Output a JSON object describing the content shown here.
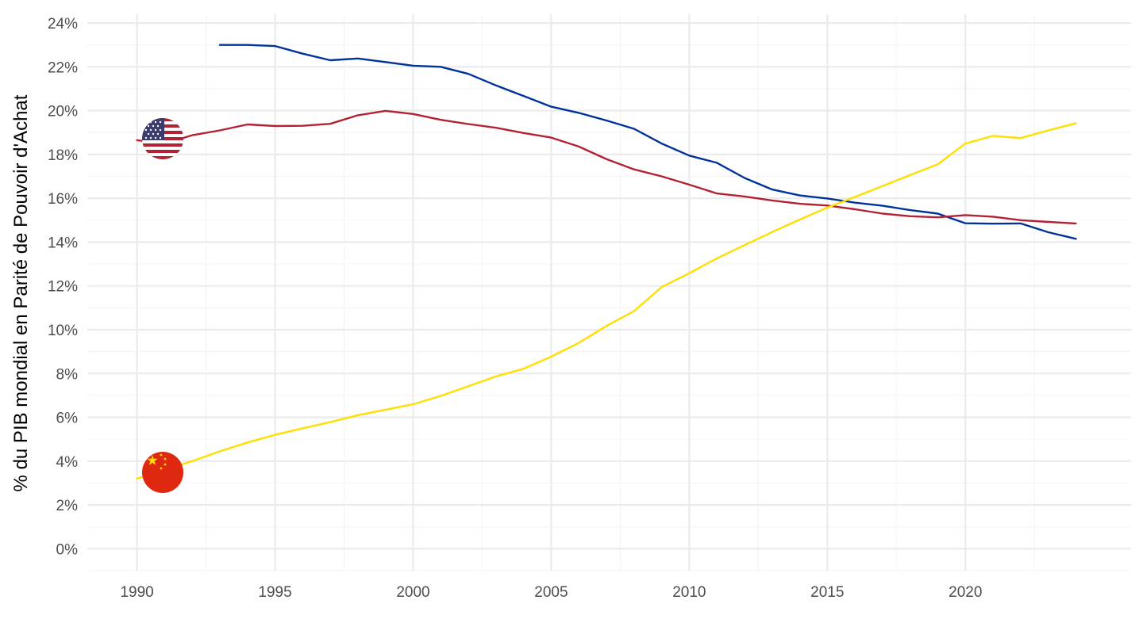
{
  "chart_data": {
    "type": "line",
    "ylabel": "% du PIB mondial en Parité de Pouvoir d'Achat",
    "xlim": [
      1988.2,
      1990.0
    ],
    "ylim": [
      -1,
      24.4
    ],
    "x_ticks": [
      1990,
      1995,
      2000,
      2005,
      2010,
      2015,
      2020
    ],
    "x_tick_labels": [
      "1990",
      "1995",
      "2000",
      "2005",
      "2010",
      "2015",
      "2020"
    ],
    "y_ticks": [
      0,
      2,
      4,
      6,
      8,
      10,
      12,
      14,
      16,
      18,
      20,
      22,
      24
    ],
    "y_tick_labels": [
      "0%",
      "2%",
      "4%",
      "6%",
      "8%",
      "10%",
      "12%",
      "14%",
      "16%",
      "18%",
      "20%",
      "22%",
      "24%"
    ],
    "grid": true,
    "legend": "none (country flags at series start)",
    "colors": {
      "grid_major": "#ebebeb",
      "grid_minor": "#f5f5f5",
      "tick_text": "#4d4d4d"
    },
    "series": [
      {
        "key": "eu",
        "color": "#003399",
        "flag_icon": null,
        "x": [
          1993,
          1994,
          1995,
          1996,
          1997,
          1998,
          1999,
          2000,
          2001,
          2002,
          2003,
          2004,
          2005,
          2006,
          2007,
          2008,
          2009,
          2010,
          2011,
          2012,
          2013,
          2014,
          2015,
          2016,
          2017,
          2018,
          2019,
          2020,
          2021,
          2022,
          2023,
          2024
        ],
        "values": [
          23.0,
          23.0,
          22.95,
          22.6,
          22.3,
          22.38,
          22.22,
          22.05,
          22.0,
          21.68,
          21.15,
          20.67,
          20.18,
          19.9,
          19.55,
          19.17,
          18.5,
          17.95,
          17.62,
          16.93,
          16.4,
          16.13,
          15.99,
          15.8,
          15.66,
          15.46,
          15.3,
          14.86,
          14.84,
          14.85,
          14.45,
          14.15
        ]
      },
      {
        "key": "us",
        "color": "#b22234",
        "flag_icon": "us-flag-icon",
        "x": [
          1990,
          1991,
          1992,
          1993,
          1994,
          1995,
          1996,
          1997,
          1998,
          1999,
          2000,
          2001,
          2002,
          2003,
          2004,
          2005,
          2006,
          2007,
          2008,
          2009,
          2010,
          2011,
          2012,
          2013,
          2014,
          2015,
          2016,
          2017,
          2018,
          2019,
          2020,
          2021,
          2022,
          2023,
          2024
        ],
        "values": [
          18.65,
          18.5,
          18.88,
          19.1,
          19.37,
          19.3,
          19.31,
          19.4,
          19.79,
          19.99,
          19.85,
          19.58,
          19.39,
          19.22,
          18.98,
          18.77,
          18.36,
          17.79,
          17.32,
          17.0,
          16.62,
          16.22,
          16.08,
          15.9,
          15.75,
          15.67,
          15.5,
          15.3,
          15.18,
          15.13,
          15.23,
          15.16,
          15.0,
          14.92,
          14.85
        ]
      },
      {
        "key": "cn",
        "color": "#ffde00",
        "flag_icon": "china-flag-icon",
        "x": [
          1990,
          1991,
          1992,
          1993,
          1994,
          1995,
          1996,
          1997,
          1998,
          1999,
          2000,
          2001,
          2002,
          2003,
          2004,
          2005,
          2006,
          2007,
          2008,
          2009,
          2010,
          2011,
          2012,
          2013,
          2014,
          2015,
          2016,
          2017,
          2018,
          2019,
          2020,
          2021,
          2022,
          2023,
          2024
        ],
        "values": [
          3.2,
          3.6,
          4.0,
          4.45,
          4.85,
          5.2,
          5.5,
          5.78,
          6.1,
          6.35,
          6.6,
          6.98,
          7.42,
          7.87,
          8.22,
          8.77,
          9.4,
          10.17,
          10.85,
          11.95,
          12.58,
          13.26,
          13.86,
          14.46,
          15.03,
          15.57,
          16.06,
          16.56,
          17.06,
          17.55,
          18.5,
          18.85,
          18.75,
          19.1,
          19.42
        ]
      }
    ]
  }
}
